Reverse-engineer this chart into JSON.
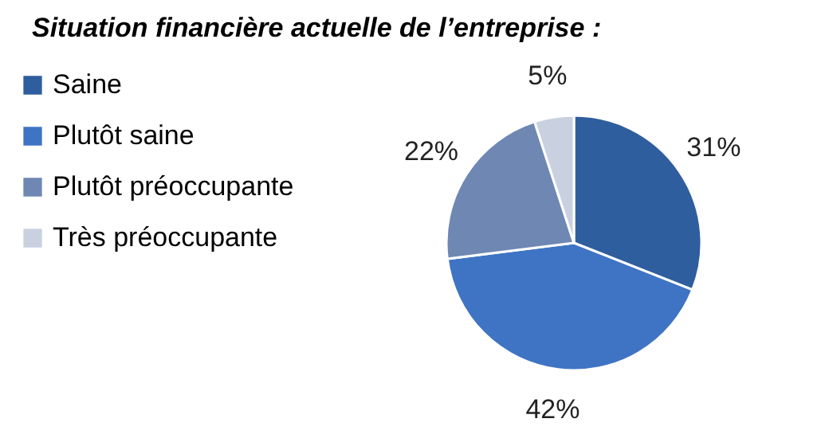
{
  "chart_data": {
    "type": "pie",
    "title": "Situation financière actuelle de l’entreprise :",
    "categories": [
      "Saine",
      "Plutôt saine",
      "Plutôt préoccupante",
      "Très préoccupante"
    ],
    "values": [
      31,
      42,
      22,
      5
    ],
    "value_labels": [
      "31%",
      "42%",
      "22%",
      "5%"
    ],
    "colors": [
      "#2f5e9e",
      "#3f74c4",
      "#6f87b3",
      "#c9d1e1"
    ],
    "legend": "left"
  }
}
